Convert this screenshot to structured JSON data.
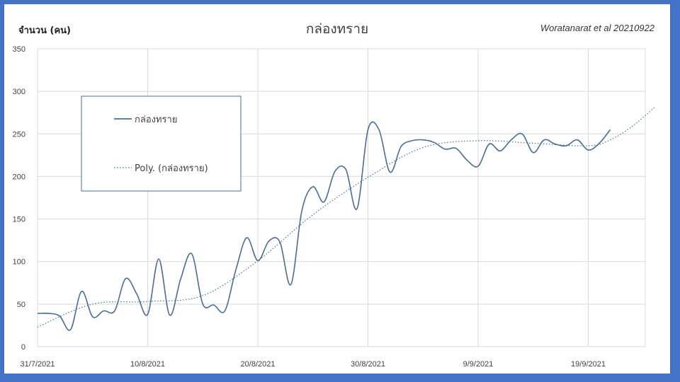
{
  "header": {
    "y_unit": "จำนวน (คน)",
    "title": "กล่องทราย",
    "credit": "Woratanarat et al 20210922"
  },
  "chart_data": {
    "type": "line",
    "title": "กล่องทราย",
    "ylabel": "จำนวน (คน)",
    "xlabel": "",
    "ylim": [
      0,
      350
    ],
    "yticks": [
      "0",
      "50",
      "100",
      "150",
      "200",
      "250",
      "300",
      "350"
    ],
    "xticks": [
      "31/7/2021",
      "10/8/2021",
      "20/8/2021",
      "30/8/2021",
      "9/9/2021",
      "19/9/2021"
    ],
    "x_start": "31/7/2021",
    "x_end": "25/9/2021",
    "grid": true,
    "legend_placement": "left",
    "series": [
      {
        "name": "กล่องทราย",
        "style": "solid",
        "color": "#4a6d94",
        "x": [
          "31/7/2021",
          "1/8/2021",
          "2/8/2021",
          "3/8/2021",
          "4/8/2021",
          "5/8/2021",
          "6/8/2021",
          "7/8/2021",
          "8/8/2021",
          "9/8/2021",
          "10/8/2021",
          "11/8/2021",
          "12/8/2021",
          "13/8/2021",
          "14/8/2021",
          "15/8/2021",
          "16/8/2021",
          "17/8/2021",
          "18/8/2021",
          "19/8/2021",
          "20/8/2021",
          "21/8/2021",
          "22/8/2021",
          "23/8/2021",
          "24/8/2021",
          "25/8/2021",
          "26/8/2021",
          "27/8/2021",
          "28/8/2021",
          "29/8/2021",
          "30/8/2021",
          "31/8/2021",
          "1/9/2021",
          "2/9/2021",
          "3/9/2021",
          "4/9/2021",
          "5/9/2021",
          "6/9/2021",
          "7/9/2021",
          "8/9/2021",
          "9/9/2021",
          "10/9/2021",
          "11/9/2021",
          "12/9/2021",
          "13/9/2021",
          "14/9/2021",
          "15/9/2021",
          "16/9/2021",
          "17/9/2021",
          "18/9/2021",
          "19/9/2021",
          "20/9/2021",
          "21/9/2021"
        ],
        "values": [
          39,
          39,
          36,
          20,
          65,
          35,
          42,
          42,
          80,
          62,
          38,
          103,
          37,
          80,
          109,
          50,
          49,
          42,
          90,
          128,
          101,
          124,
          123,
          73,
          160,
          188,
          170,
          206,
          208,
          162,
          255,
          255,
          205,
          235,
          242,
          243,
          240,
          232,
          233,
          219,
          212,
          238,
          230,
          243,
          250,
          228,
          243,
          238,
          236,
          243,
          231,
          239,
          255
        ]
      },
      {
        "name": "Poly. (กล่องทราย)",
        "style": "dotted",
        "color": "#4a6d94",
        "x": [
          "31/7/2021",
          "5/8/2021",
          "10/8/2021",
          "15/8/2021",
          "20/8/2021",
          "25/8/2021",
          "30/8/2021",
          "4/9/2021",
          "9/9/2021",
          "14/9/2021",
          "19/9/2021",
          "21/9/2021",
          "23/9/2021",
          "25/9/2021"
        ],
        "values": [
          23,
          50,
          53,
          60,
          101,
          155,
          199,
          234,
          242,
          239,
          236,
          243,
          259,
          281
        ]
      }
    ]
  }
}
